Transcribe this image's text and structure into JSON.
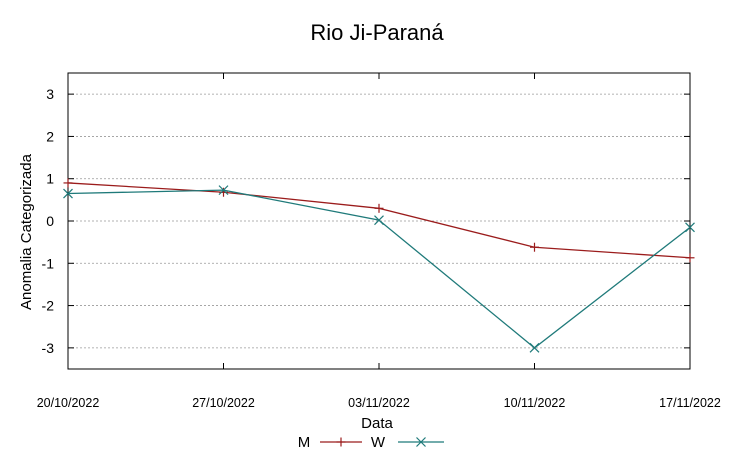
{
  "chart_data": {
    "type": "line",
    "title": "Rio Ji-Paraná",
    "xlabel": "Data",
    "ylabel": "Anomalia Categorizada",
    "categories": [
      "20/10/2022",
      "27/10/2022",
      "03/11/2022",
      "10/11/2022",
      "17/11/2022"
    ],
    "ylim": [
      -3.5,
      3.5
    ],
    "yticks": [
      "3",
      "2",
      "1",
      "0",
      "-1",
      "-2",
      "-3"
    ],
    "grid": true,
    "legend_placement": "bottom-center",
    "series": [
      {
        "name": "M",
        "color": "#9b1c1c",
        "marker": "plus",
        "values": [
          0.9,
          0.68,
          0.3,
          -0.62,
          -0.87
        ]
      },
      {
        "name": "W",
        "color": "#1f7a7a",
        "marker": "x",
        "values": [
          0.65,
          0.73,
          0.02,
          -3.0,
          -0.15
        ]
      }
    ]
  }
}
